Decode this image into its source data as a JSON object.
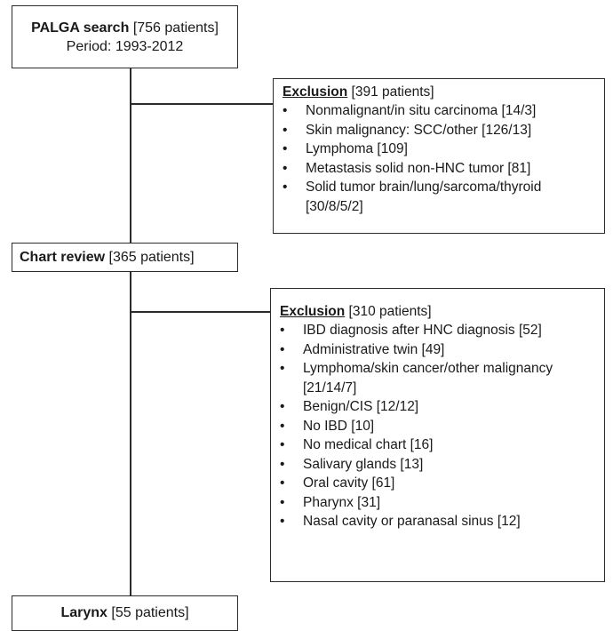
{
  "nodes": {
    "palga": {
      "title": "PALGA search",
      "count": "[756 patients]",
      "period": "Period: 1993-2012"
    },
    "exclusion1": {
      "title": "Exclusion",
      "count": "[391 patients]",
      "items": [
        "Nonmalignant/in situ carcinoma [14/3]",
        "Skin malignancy: SCC/other [126/13]",
        "Lymphoma [109]",
        "Metastasis solid non-HNC tumor [81]",
        "Solid tumor brain/lung/sarcoma/thyroid [30/8/5/2]"
      ]
    },
    "chart_review": {
      "title": "Chart review",
      "count": "[365 patients]"
    },
    "exclusion2": {
      "title": "Exclusion",
      "count": "[310 patients]",
      "items": [
        "IBD diagnosis after HNC diagnosis [52]",
        "Administrative twin [49]",
        "Lymphoma/skin cancer/other malignancy [21/14/7]",
        "Benign/CIS [12/12]",
        "No IBD [10]",
        "No medical chart [16]",
        "Salivary glands [13]",
        "Oral cavity [61]",
        "Pharynx [31]",
        "Nasal cavity or paranasal sinus [12]"
      ]
    },
    "larynx": {
      "title": "Larynx",
      "count": "[55 patients]"
    }
  }
}
